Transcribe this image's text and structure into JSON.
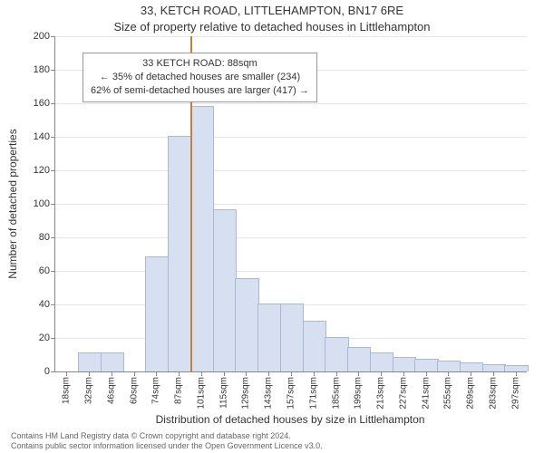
{
  "title_line1": "33, KETCH ROAD, LITTLEHAMPTON, BN17 6RE",
  "title_line2": "Size of property relative to detached houses in Littlehampton",
  "y_axis_label": "Number of detached properties",
  "x_axis_label": "Distribution of detached houses by size in Littlehampton",
  "chart": {
    "type": "histogram",
    "ylim": [
      0,
      200
    ],
    "ytick_step": 20,
    "bar_fill": "#d6e0f0",
    "bar_stroke": "#a9b8d4",
    "grid_color": "#e5e5e5",
    "background_color": "#ffffff",
    "x_categories": [
      "18sqm",
      "32sqm",
      "46sqm",
      "60sqm",
      "74sqm",
      "87sqm",
      "101sqm",
      "115sqm",
      "129sqm",
      "143sqm",
      "157sqm",
      "171sqm",
      "185sqm",
      "199sqm",
      "213sqm",
      "227sqm",
      "241sqm",
      "255sqm",
      "269sqm",
      "283sqm",
      "297sqm"
    ],
    "values": [
      0,
      11,
      11,
      0,
      68,
      140,
      158,
      96,
      55,
      40,
      40,
      30,
      20,
      14,
      11,
      8,
      7,
      6,
      5,
      4,
      3
    ],
    "marker": {
      "color": "#c08040",
      "bin_index": 5
    }
  },
  "annotation": {
    "line1": "33 KETCH ROAD: 88sqm",
    "line2": "← 35% of detached houses are smaller (234)",
    "line3": "62% of semi-detached houses are larger (417) →"
  },
  "footer": {
    "line1": "Contains HM Land Registry data © Crown copyright and database right 2024.",
    "line2": "Contains public sector information licensed under the Open Government Licence v3.0."
  }
}
